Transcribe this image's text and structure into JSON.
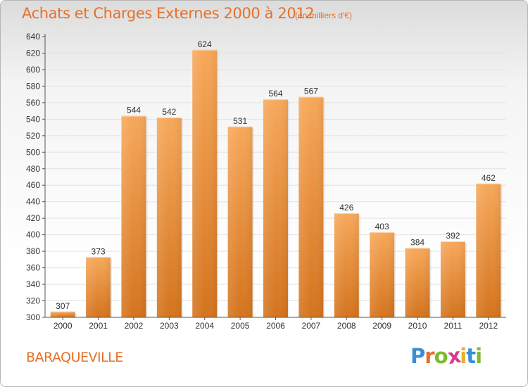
{
  "header": {
    "title": "Achats et Charges Externes 2000 à 2012",
    "subtitle": "(en milliers d'€)"
  },
  "footer": {
    "town": "BARAQUEVILLE",
    "brand_letters": [
      "P",
      "r",
      "o",
      "x",
      "i",
      "t",
      "i"
    ],
    "brand_colors": [
      "#3a8fd6",
      "#e6702a",
      "#7cbb2e",
      "#d63a8f",
      "#e6b02a",
      "#3a8fd6",
      "#7cbb2e"
    ]
  },
  "colors": {
    "bar_top": "#f7a85a",
    "bar_bottom": "#d4741e",
    "grid": "#e2e2e2",
    "axis": "#555555",
    "text": "#333333"
  },
  "chart_data": {
    "type": "bar",
    "categories": [
      "2000",
      "2001",
      "2002",
      "2003",
      "2004",
      "2005",
      "2006",
      "2007",
      "2008",
      "2009",
      "2010",
      "2011",
      "2012"
    ],
    "values": [
      307,
      373,
      544,
      542,
      624,
      531,
      564,
      567,
      426,
      403,
      384,
      392,
      462
    ],
    "ylim": [
      300,
      640
    ],
    "yticks": [
      300,
      320,
      340,
      360,
      380,
      400,
      420,
      440,
      460,
      480,
      500,
      520,
      540,
      560,
      580,
      600,
      620,
      640
    ],
    "grid": true
  }
}
